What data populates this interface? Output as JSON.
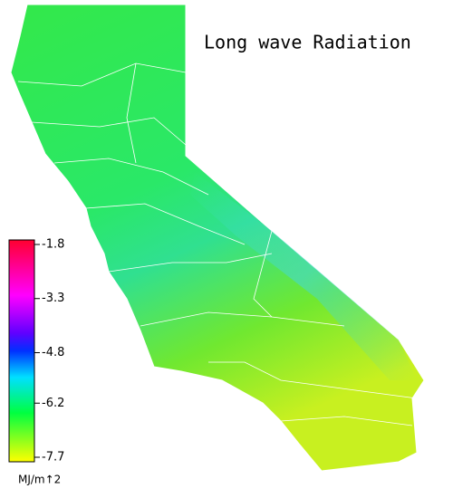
{
  "title": "Long wave Radiation",
  "colorbar": {
    "lim": [
      -7.7,
      -1.8
    ],
    "ticks": [
      -1.8,
      -3.3,
      -4.8,
      -6.2,
      -7.7
    ],
    "unit": "MJ/m↑2"
  }
}
